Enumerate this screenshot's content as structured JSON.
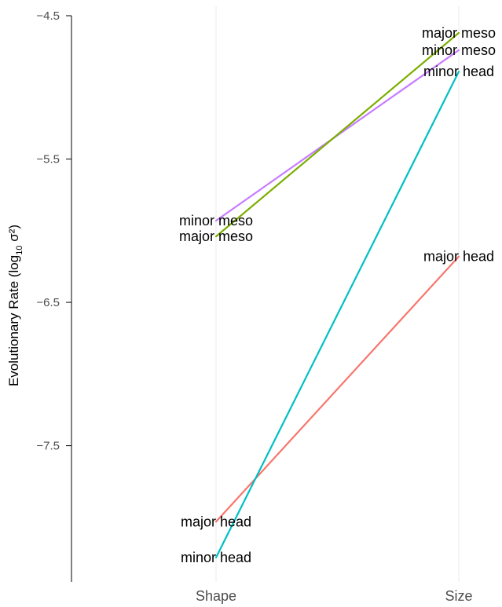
{
  "chart_data": {
    "type": "line",
    "categories": [
      "Shape",
      "Size"
    ],
    "ylabel": {
      "prefix": "Evolutionary Rate (log",
      "sub": "10",
      "suffix": " σ²)"
    },
    "ylim": [
      -8.45,
      -4.5
    ],
    "yticks": [
      -4.5,
      -5.5,
      -6.5,
      -7.5
    ],
    "ytick_labels": [
      "−4.5",
      "−5.5",
      "−6.5",
      "−7.5"
    ],
    "grid": "vertical only, faint",
    "legend": "none (direct labels)",
    "series": [
      {
        "name": "major head",
        "color": "#f8766d",
        "values": [
          -8.03,
          -6.18
        ]
      },
      {
        "name": "minor meso",
        "color": "#c77cff",
        "values": [
          -5.93,
          -4.74
        ]
      },
      {
        "name": "major meso",
        "color": "#7cae00",
        "values": [
          -6.04,
          -4.62
        ]
      },
      {
        "name": "minor head",
        "color": "#00bfc4",
        "values": [
          -8.28,
          -4.89
        ]
      }
    ],
    "labels": [
      {
        "series": 0,
        "point": 0,
        "text": "major head"
      },
      {
        "series": 0,
        "point": 1,
        "text": "major head"
      },
      {
        "series": 1,
        "point": 0,
        "text": "minor meso"
      },
      {
        "series": 1,
        "point": 1,
        "text": "minor meso"
      },
      {
        "series": 2,
        "point": 0,
        "text": "major meso"
      },
      {
        "series": 2,
        "point": 1,
        "text": "major meso"
      },
      {
        "series": 3,
        "point": 0,
        "text": "minor head"
      },
      {
        "series": 3,
        "point": 1,
        "text": "minor head"
      }
    ]
  }
}
